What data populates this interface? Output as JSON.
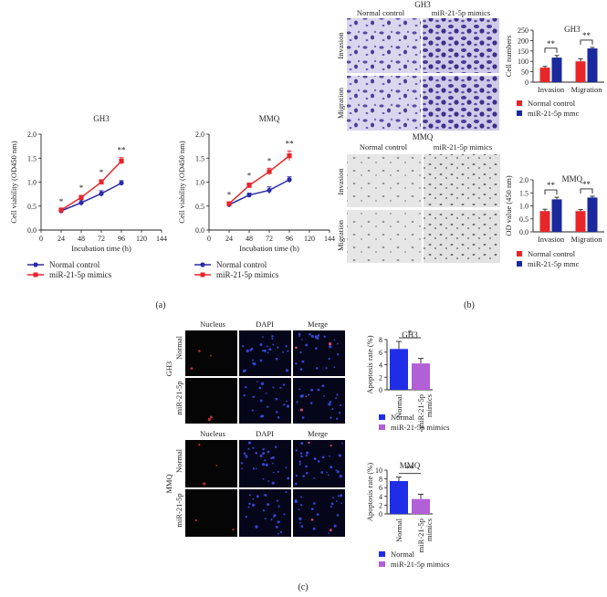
{
  "figure": {
    "panel_a_label": "(a)",
    "panel_b_label": "(b)",
    "panel_c_label": "(c)"
  },
  "panel_a": {
    "legend": [
      "Normal control",
      "miR-21-5p mimics"
    ],
    "colors": {
      "normal": "#2b2ba8",
      "mimic": "#e8262a"
    }
  },
  "panel_b": {
    "gh3_title": "GH3",
    "mmq_title": "MMQ",
    "col_headers": [
      "Normal control",
      "miR-21-5p mimics"
    ],
    "row_labels": [
      "Invasion",
      "Migration"
    ],
    "legend": [
      "Normal control",
      "miR-21-5p mmc"
    ],
    "colors": {
      "normal": "#e8262a",
      "mimic": "#1a2a9c"
    }
  },
  "panel_c": {
    "col_headers": [
      "Nucleus",
      "DAPI",
      "Merge"
    ],
    "gh3_side": "GH3",
    "mmq_side": "MMQ",
    "row_labels": [
      "Normal",
      "miR-21-5p"
    ],
    "legend": [
      "Normal",
      "miR-21-5p mimics"
    ],
    "colors": {
      "normal": "#1f2ee6",
      "mimic": "#b25fd8"
    }
  },
  "chart_data": [
    {
      "id": "a-gh3",
      "type": "line",
      "title": "GH3",
      "xlabel": "Incubation time (h)",
      "ylabel": "Cell viability (OD450 nm)",
      "x": [
        24,
        48,
        72,
        96
      ],
      "xlim": [
        0,
        144
      ],
      "ylim": [
        0,
        2.0
      ],
      "xticks": [
        0,
        24,
        48,
        72,
        96,
        120,
        144
      ],
      "yticks": [
        0,
        0.5,
        1.0,
        1.5,
        2.0
      ],
      "series": [
        {
          "name": "Normal control",
          "values": [
            0.4,
            0.57,
            0.76,
            0.98
          ],
          "err": [
            0.02,
            0.06,
            0.06,
            0.05
          ]
        },
        {
          "name": "miR-21-5p mimics",
          "values": [
            0.42,
            0.68,
            1.0,
            1.44
          ],
          "err": [
            0.02,
            0.04,
            0.05,
            0.07
          ]
        }
      ],
      "annotations": [
        "*",
        "*",
        "*",
        "**"
      ]
    },
    {
      "id": "a-mmq",
      "type": "line",
      "title": "MMQ",
      "xlabel": "Incubation time (h)",
      "ylabel": "Cell viability (OD450 nm)",
      "x": [
        24,
        48,
        72,
        96
      ],
      "xlim": [
        0,
        144
      ],
      "ylim": [
        0,
        2.0
      ],
      "xticks": [
        0,
        24,
        48,
        72,
        96,
        120,
        144
      ],
      "yticks": [
        0,
        0.5,
        1.0,
        1.5,
        2.0
      ],
      "series": [
        {
          "name": "Normal control",
          "values": [
            0.53,
            0.73,
            0.83,
            1.05
          ],
          "err": [
            0.03,
            0.04,
            0.07,
            0.06
          ]
        },
        {
          "name": "miR-21-5p mimics",
          "values": [
            0.55,
            0.93,
            1.22,
            1.55
          ],
          "err": [
            0.03,
            0.05,
            0.07,
            0.1
          ]
        }
      ],
      "annotations": [
        "*",
        "*",
        "*",
        "**"
      ]
    },
    {
      "id": "b-gh3",
      "type": "bar",
      "title": "GH3",
      "ylabel": "Cell numbers",
      "categories": [
        "Invasion",
        "Migration"
      ],
      "ylim": [
        0,
        250
      ],
      "yticks": [
        0,
        50,
        100,
        150,
        200,
        250
      ],
      "series": [
        {
          "name": "Normal control",
          "values": [
            70,
            100
          ],
          "err": [
            6,
            12
          ]
        },
        {
          "name": "miR-21-5p mmc",
          "values": [
            118,
            162
          ],
          "err": [
            10,
            5
          ]
        }
      ],
      "annotations": [
        "**",
        "**"
      ]
    },
    {
      "id": "b-mmq",
      "type": "bar",
      "title": "MMQ",
      "ylabel": "OD value (450 nm)",
      "categories": [
        "Invasion",
        "Migration"
      ],
      "ylim": [
        0,
        2.0
      ],
      "yticks": [
        0,
        0.5,
        1.0,
        1.5,
        2.0
      ],
      "series": [
        {
          "name": "Normal control",
          "values": [
            0.8,
            0.8
          ],
          "err": [
            0.07,
            0.06
          ]
        },
        {
          "name": "miR-21-5p mmc",
          "values": [
            1.25,
            1.32
          ],
          "err": [
            0.08,
            0.05
          ]
        }
      ],
      "annotations": [
        "**",
        "**"
      ]
    },
    {
      "id": "c-gh3",
      "type": "bar",
      "title": "GH3",
      "ylabel": "Apoptosis rate (%)",
      "categories": [
        "Normal",
        "miR-21-5p mimics"
      ],
      "ylim": [
        0,
        8
      ],
      "yticks": [
        0,
        2,
        4,
        6,
        8
      ],
      "series": [
        {
          "name": "Apoptosis rate",
          "values": [
            6.5,
            4.2
          ],
          "err": [
            1.2,
            0.8
          ]
        }
      ],
      "annotations": [
        "*"
      ]
    },
    {
      "id": "c-mmq",
      "type": "bar",
      "title": "MMQ",
      "ylabel": "Apoptosis rate (%)",
      "categories": [
        "Normal",
        "miR-21-5p mimics"
      ],
      "ylim": [
        0,
        10
      ],
      "yticks": [
        0,
        2,
        4,
        6,
        8,
        10
      ],
      "series": [
        {
          "name": "Apoptosis rate",
          "values": [
            7.5,
            3.4
          ],
          "err": [
            0.9,
            1.1
          ]
        }
      ],
      "annotations": [
        "**"
      ]
    }
  ]
}
